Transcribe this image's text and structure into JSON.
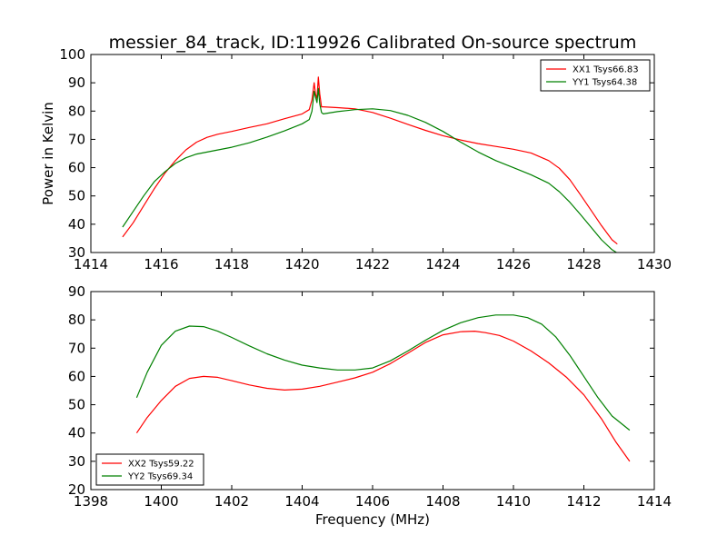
{
  "chart_data": [
    {
      "type": "line",
      "title": "messier_84_track, ID:119926 Calibrated On-source spectrum",
      "ylabel": "Power in Kelvin",
      "xlabel": "",
      "xlim": [
        1414,
        1430
      ],
      "ylim": [
        30,
        100
      ],
      "xticks": [
        1414,
        1416,
        1418,
        1420,
        1422,
        1424,
        1426,
        1428,
        1430
      ],
      "yticks": [
        30,
        40,
        50,
        60,
        70,
        80,
        90,
        100
      ],
      "legend_position": "upper right",
      "series": [
        {
          "name": "XX1 Tsys66.83",
          "color": "#ff0000",
          "x": [
            1414.9,
            1415.2,
            1415.5,
            1415.8,
            1416.1,
            1416.4,
            1416.7,
            1417.0,
            1417.3,
            1417.6,
            1418.0,
            1418.5,
            1419.0,
            1419.5,
            1420.0,
            1420.2,
            1420.28,
            1420.34,
            1420.38,
            1420.42,
            1420.46,
            1420.5,
            1420.55,
            1420.6,
            1421.0,
            1421.5,
            1422.0,
            1422.5,
            1423.0,
            1423.5,
            1424.0,
            1424.5,
            1425.0,
            1425.5,
            1426.0,
            1426.5,
            1427.0,
            1427.3,
            1427.6,
            1427.9,
            1428.2,
            1428.5,
            1428.8,
            1428.95
          ],
          "values": [
            35.5,
            40.5,
            46.5,
            52.5,
            58.0,
            62.5,
            66.3,
            69.0,
            70.7,
            71.8,
            72.8,
            74.2,
            75.5,
            77.3,
            79.0,
            80.5,
            84.0,
            90.0,
            86.0,
            84.5,
            92.0,
            86.0,
            81.5,
            81.5,
            81.2,
            80.8,
            79.5,
            77.5,
            75.3,
            73.2,
            71.3,
            69.8,
            68.5,
            67.5,
            66.5,
            65.2,
            62.5,
            59.8,
            55.8,
            50.5,
            45.0,
            39.5,
            34.5,
            33.0
          ]
        },
        {
          "name": "YY1 Tsys64.38",
          "color": "#008000",
          "x": [
            1414.9,
            1415.2,
            1415.5,
            1415.8,
            1416.1,
            1416.4,
            1416.7,
            1417.0,
            1417.5,
            1418.0,
            1418.5,
            1419.0,
            1419.5,
            1420.0,
            1420.2,
            1420.28,
            1420.34,
            1420.38,
            1420.42,
            1420.46,
            1420.5,
            1420.55,
            1420.6,
            1421.0,
            1421.5,
            1422.0,
            1422.5,
            1423.0,
            1423.5,
            1424.0,
            1424.5,
            1425.0,
            1425.5,
            1426.0,
            1426.5,
            1427.0,
            1427.3,
            1427.6,
            1427.9,
            1428.2,
            1428.5,
            1428.8,
            1428.95
          ],
          "values": [
            39.0,
            44.5,
            50.0,
            55.0,
            58.5,
            61.5,
            63.5,
            64.8,
            66.0,
            67.2,
            68.8,
            70.8,
            73.0,
            75.5,
            77.0,
            80.0,
            87.0,
            85.0,
            83.0,
            88.0,
            82.5,
            79.5,
            79.0,
            79.8,
            80.5,
            80.8,
            80.2,
            78.5,
            76.0,
            72.8,
            69.0,
            65.5,
            62.5,
            60.0,
            57.5,
            54.5,
            51.5,
            47.8,
            43.5,
            39.0,
            34.5,
            31.0,
            29.8
          ]
        }
      ]
    },
    {
      "type": "line",
      "title": "",
      "xlabel": "Frequency (MHz)",
      "ylabel": "",
      "xlim": [
        1398,
        1414
      ],
      "ylim": [
        20,
        90
      ],
      "xticks": [
        1398,
        1400,
        1402,
        1404,
        1406,
        1408,
        1410,
        1412,
        1414
      ],
      "yticks": [
        20,
        30,
        40,
        50,
        60,
        70,
        80,
        90
      ],
      "legend_position": "lower left",
      "series": [
        {
          "name": "XX2 Tsys59.22",
          "color": "#ff0000",
          "x": [
            1399.3,
            1399.6,
            1400.0,
            1400.4,
            1400.8,
            1401.2,
            1401.6,
            1402.0,
            1402.5,
            1403.0,
            1403.5,
            1404.0,
            1404.5,
            1405.0,
            1405.5,
            1406.0,
            1406.5,
            1407.0,
            1407.5,
            1408.0,
            1408.5,
            1408.9,
            1409.2,
            1409.6,
            1410.0,
            1410.5,
            1411.0,
            1411.5,
            1412.0,
            1412.5,
            1412.9,
            1413.3
          ],
          "values": [
            40.0,
            45.5,
            51.5,
            56.5,
            59.3,
            60.0,
            59.7,
            58.5,
            57.0,
            55.8,
            55.2,
            55.5,
            56.5,
            58.0,
            59.5,
            61.5,
            64.5,
            68.2,
            72.0,
            74.7,
            75.8,
            76.0,
            75.5,
            74.5,
            72.5,
            69.0,
            64.8,
            59.8,
            53.5,
            45.0,
            37.0,
            30.0
          ]
        },
        {
          "name": "YY2 Tsys69.34",
          "color": "#008000",
          "x": [
            1399.3,
            1399.6,
            1400.0,
            1400.4,
            1400.8,
            1401.2,
            1401.6,
            1402.0,
            1402.5,
            1403.0,
            1403.5,
            1404.0,
            1404.5,
            1405.0,
            1405.5,
            1406.0,
            1406.5,
            1407.0,
            1407.5,
            1408.0,
            1408.5,
            1409.0,
            1409.5,
            1410.0,
            1410.4,
            1410.8,
            1411.2,
            1411.6,
            1412.0,
            1412.4,
            1412.8,
            1413.3
          ],
          "values": [
            52.5,
            61.5,
            71.0,
            76.0,
            77.8,
            77.6,
            76.0,
            73.8,
            70.8,
            68.0,
            65.8,
            64.0,
            63.0,
            62.3,
            62.3,
            63.0,
            65.5,
            69.0,
            72.8,
            76.3,
            79.0,
            80.8,
            81.7,
            81.7,
            80.8,
            78.5,
            74.0,
            67.5,
            60.0,
            52.5,
            46.0,
            41.0
          ]
        }
      ]
    }
  ]
}
